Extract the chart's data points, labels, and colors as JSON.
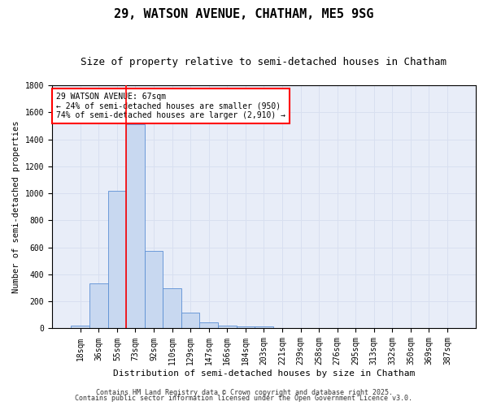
{
  "title": "29, WATSON AVENUE, CHATHAM, ME5 9SG",
  "subtitle": "Size of property relative to semi-detached houses in Chatham",
  "xlabel": "Distribution of semi-detached houses by size in Chatham",
  "ylabel": "Number of semi-detached properties",
  "bins": [
    "18sqm",
    "36sqm",
    "55sqm",
    "73sqm",
    "92sqm",
    "110sqm",
    "129sqm",
    "147sqm",
    "166sqm",
    "184sqm",
    "203sqm",
    "221sqm",
    "239sqm",
    "258sqm",
    "276sqm",
    "295sqm",
    "313sqm",
    "332sqm",
    "350sqm",
    "369sqm",
    "387sqm"
  ],
  "values": [
    20,
    335,
    1020,
    1510,
    575,
    300,
    120,
    45,
    20,
    15,
    15,
    0,
    0,
    0,
    0,
    0,
    0,
    0,
    0,
    0,
    0
  ],
  "bar_color": "#c8d8f0",
  "bar_edge_color": "#5b8fd4",
  "vline_color": "red",
  "vline_pos": 2.5,
  "annotation_text": "29 WATSON AVENUE: 67sqm\n← 24% of semi-detached houses are smaller (950)\n74% of semi-detached houses are larger (2,910) →",
  "annotation_box_color": "white",
  "annotation_box_edge": "red",
  "ylim": [
    0,
    1800
  ],
  "yticks": [
    0,
    200,
    400,
    600,
    800,
    1000,
    1200,
    1400,
    1600,
    1800
  ],
  "grid_color": "#d8dff0",
  "bg_color": "#e8edf8",
  "footer1": "Contains HM Land Registry data © Crown copyright and database right 2025.",
  "footer2": "Contains public sector information licensed under the Open Government Licence v3.0.",
  "title_fontsize": 11,
  "subtitle_fontsize": 9,
  "xlabel_fontsize": 8,
  "ylabel_fontsize": 7.5,
  "tick_fontsize": 7,
  "annotation_fontsize": 7,
  "footer_fontsize": 6
}
